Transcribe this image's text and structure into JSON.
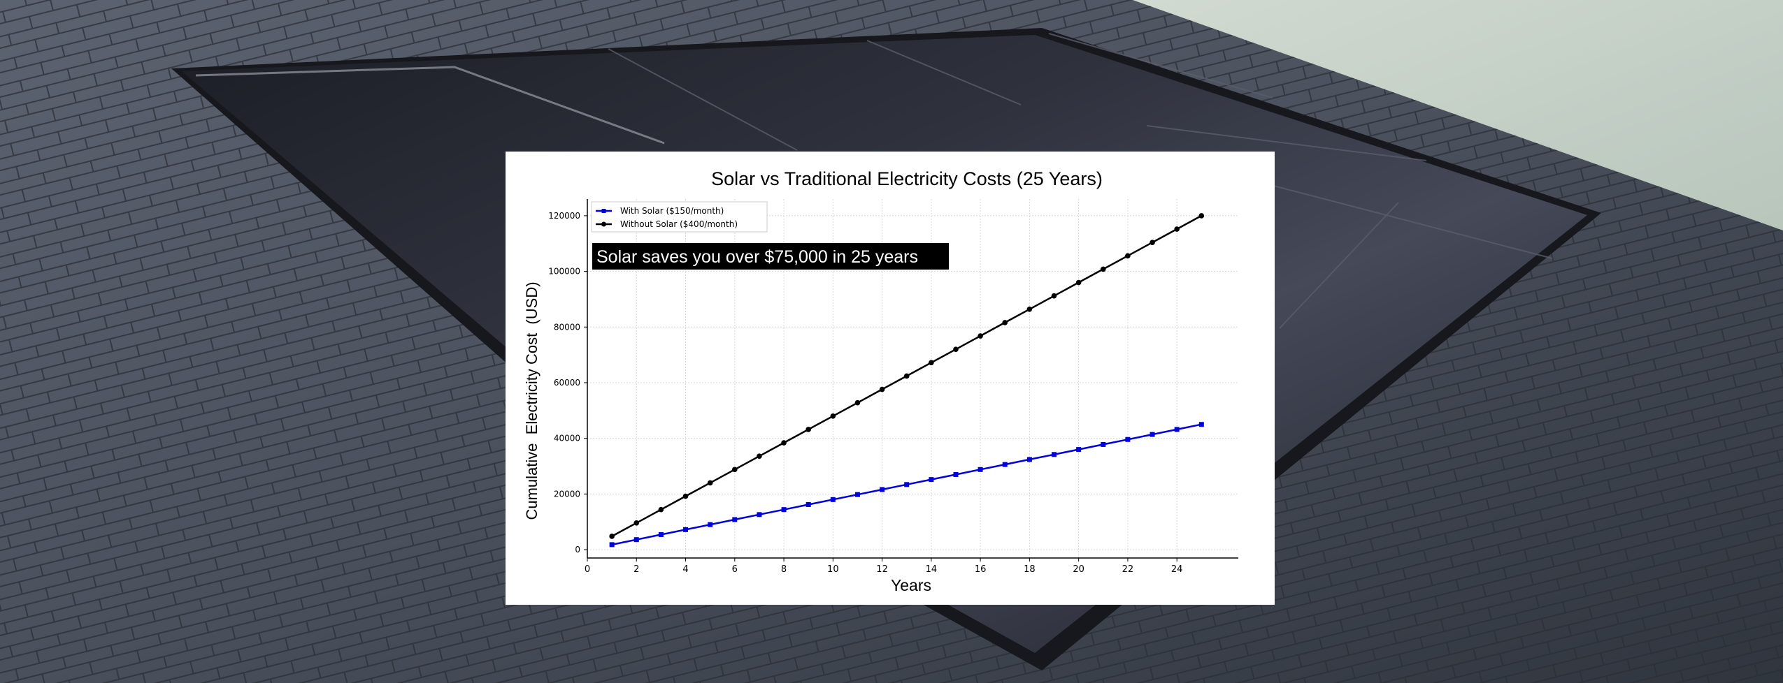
{
  "chart_data": {
    "type": "line",
    "title": "Solar vs Traditional Electricity Costs (25 Years)",
    "xlabel": "Years",
    "ylabel": "Cumulative  Electricity Cost  (USD)",
    "annotation": "Solar saves you over $75,000 in 25 years",
    "xlim": [
      0,
      26.5
    ],
    "ylim": [
      -3000,
      126000
    ],
    "x_ticks": [
      "0",
      "2",
      "4",
      "6",
      "8",
      "10",
      "12",
      "14",
      "16",
      "18",
      "20",
      "22",
      "24"
    ],
    "y_ticks": [
      "0",
      "20000",
      "40000",
      "60000",
      "80000",
      "100000",
      "120000"
    ],
    "grid": true,
    "legend_position": "top-left",
    "x": [
      1,
      2,
      3,
      4,
      5,
      6,
      7,
      8,
      9,
      10,
      11,
      12,
      13,
      14,
      15,
      16,
      17,
      18,
      19,
      20,
      21,
      22,
      23,
      24,
      25
    ],
    "series": [
      {
        "name": "With Solar ($150/month)",
        "color": "#0000dd",
        "marker": "square",
        "values": [
          1800,
          3600,
          5400,
          7200,
          9000,
          10800,
          12600,
          14400,
          16200,
          18000,
          19800,
          21600,
          23400,
          25200,
          27000,
          28800,
          30600,
          32400,
          34200,
          36000,
          37800,
          39600,
          41400,
          43200,
          45000
        ]
      },
      {
        "name": "Without Solar ($400/month)",
        "color": "#000000",
        "marker": "circle",
        "values": [
          4800,
          9600,
          14400,
          19200,
          24000,
          28800,
          33600,
          38400,
          43200,
          48000,
          52800,
          57600,
          62400,
          67200,
          72000,
          76800,
          81600,
          86400,
          91200,
          96000,
          100800,
          105600,
          110400,
          115200,
          120000
        ]
      }
    ]
  }
}
